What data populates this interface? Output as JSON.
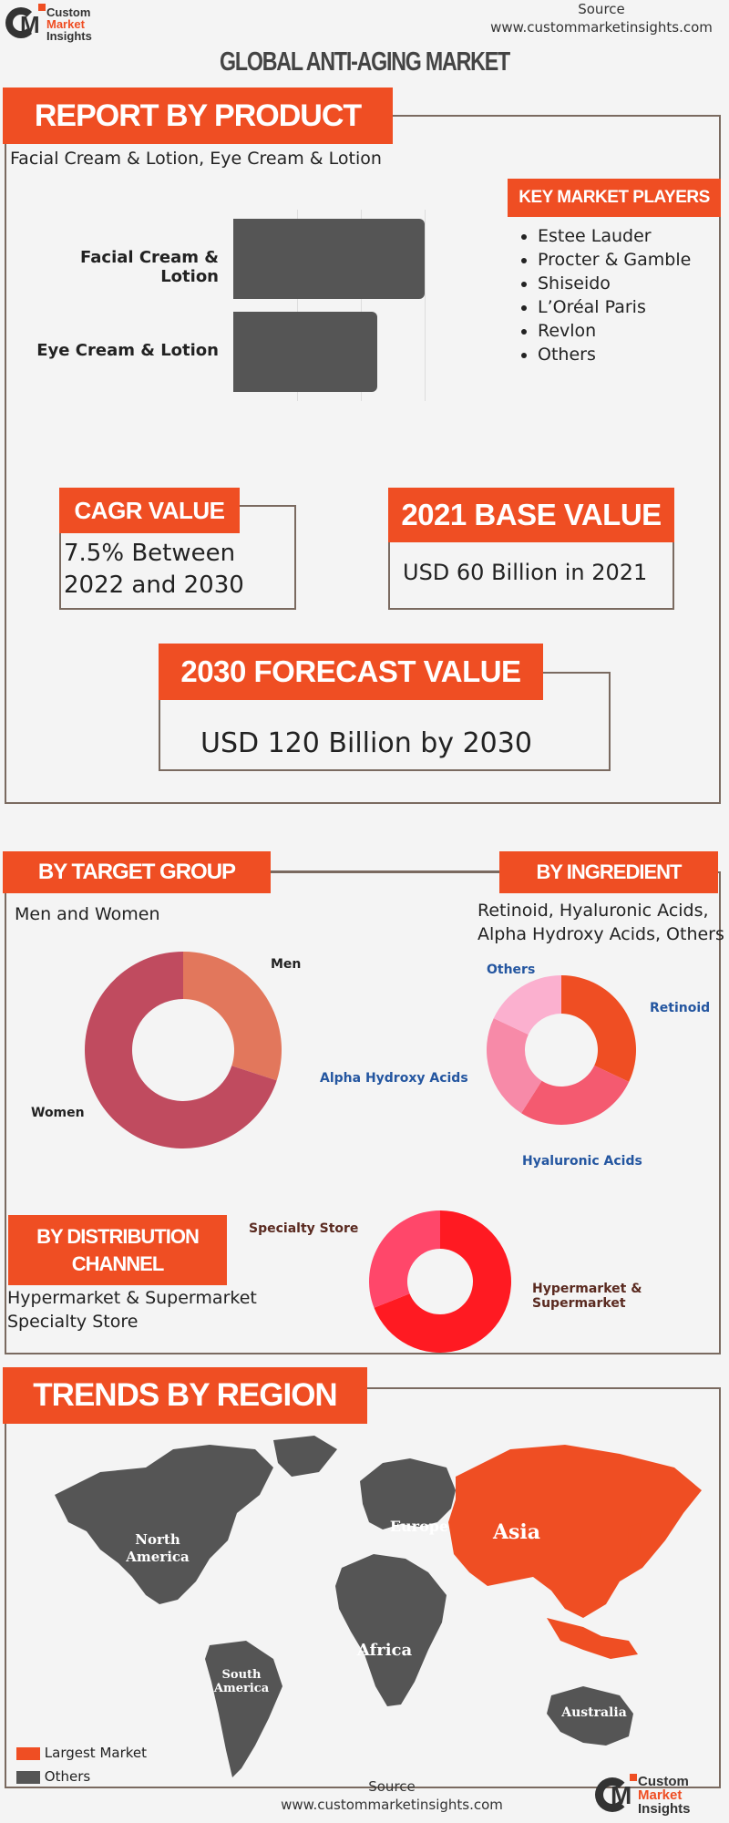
{
  "header": {
    "logo_line1": "Custom",
    "logo_line2": "Market",
    "logo_line3": "Insights",
    "source_label": "Source",
    "source_url": "www.custommarketinsights.com",
    "title": "GLOBAL ANTI-AGING MARKET"
  },
  "product": {
    "banner": "REPORT BY PRODUCT",
    "subtitle": "Facial Cream & Lotion, Eye Cream & Lotion",
    "chart_data": {
      "type": "bar",
      "orientation": "horizontal",
      "categories": [
        "Facial Cream & Lotion",
        "Eye Cream & Lotion"
      ],
      "values": [
        60,
        45
      ],
      "xlim": [
        0,
        60
      ],
      "grid": true,
      "bar_color": "#555555"
    }
  },
  "players": {
    "banner": "KEY MARKET PLAYERS",
    "items": [
      "Estee Lauder",
      "Procter & Gamble",
      "Shiseido",
      "L’Oréal Paris",
      "Revlon",
      "Others"
    ]
  },
  "cagr": {
    "banner": "CAGR VALUE",
    "line1": "7.5% Between",
    "line2": "2022 and 2030"
  },
  "base": {
    "banner": "2021 BASE VALUE",
    "value": "USD 60 Billion in 2021"
  },
  "forecast": {
    "banner": "2030 FORECAST  VALUE",
    "value": "USD 120 Billion by 2030"
  },
  "target": {
    "banner": "BY TARGET GROUP",
    "subtitle": "Men and Women",
    "chart_data": {
      "type": "pie",
      "donut": true,
      "categories": [
        "Men",
        "Women"
      ],
      "values": [
        30,
        70
      ],
      "colors": [
        "#e2775c",
        "#c04b5f"
      ]
    }
  },
  "ingredient": {
    "banner": "BY INGREDIENT",
    "subtitle_line1": "Retinoid, Hyaluronic Acids,",
    "subtitle_line2": "Alpha Hydroxy Acids, Others",
    "chart_data": {
      "type": "pie",
      "donut": true,
      "categories": [
        "Retinoid",
        "Hyaluronic Acids",
        "Alpha Hydroxy Acids",
        "Others"
      ],
      "values": [
        32,
        27,
        23,
        18
      ],
      "colors": [
        "#ef4e23",
        "#f45a70",
        "#f78aa8",
        "#fbb0cf"
      ]
    }
  },
  "distribution": {
    "banner_line1": "BY DISTRIBUTION",
    "banner_line2": "CHANNEL",
    "items_line1": "Hypermarket & Supermarket",
    "items_line2": "Specialty Store",
    "chart_data": {
      "type": "pie",
      "donut": true,
      "categories": [
        "Hypermarket & Supermarket",
        "Specialty Store"
      ],
      "values": [
        69,
        31
      ],
      "colors": [
        "#ff1a22",
        "#ff476a"
      ]
    }
  },
  "region": {
    "banner": "TRENDS BY REGION",
    "labels": {
      "north_america_1": "North",
      "north_america_2": "America",
      "europe": "Europe",
      "asia": "Asia",
      "africa": "Africa",
      "south_america_1": "South",
      "south_america_2": "America",
      "australia": "Australia"
    },
    "legend": [
      {
        "label": "Largest Market",
        "color": "#ef4e23"
      },
      {
        "label": "Others",
        "color": "#555555"
      }
    ]
  },
  "footer": {
    "source_label": "Source",
    "source_url": "www.custommarketinsights.com",
    "logo_line1": "Custom",
    "logo_line2": "Market",
    "logo_line3": "Insights"
  }
}
